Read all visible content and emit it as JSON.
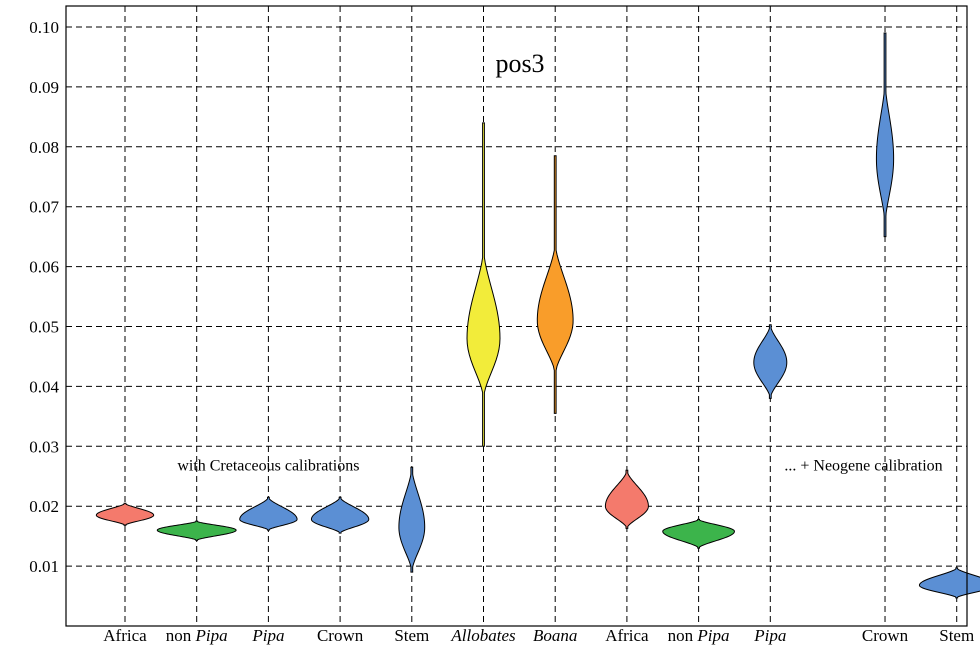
{
  "chart_data": {
    "type": "violin",
    "title": "pos3",
    "xlabel": "",
    "ylabel": "",
    "ylim": [
      0.0,
      0.103
    ],
    "yticks": [
      0.01,
      0.02,
      0.03,
      0.04,
      0.05,
      0.06,
      0.07,
      0.08,
      0.09,
      0.1
    ],
    "ytick_labels": [
      "0.01",
      "0.02",
      "0.03",
      "0.04",
      "0.05",
      "0.06",
      "0.07",
      "0.08",
      "0.09",
      "0.10"
    ],
    "grid": true,
    "annotations": [
      {
        "text": "with Cretaceous calibrations",
        "x": 3,
        "y": 0.0268
      },
      {
        "text": "... + Neogene calibration",
        "x": 11.3,
        "y": 0.0268
      }
    ],
    "categories": [
      {
        "parts": [
          {
            "text": "Africa",
            "italic": false
          }
        ]
      },
      {
        "parts": [
          {
            "text": "non ",
            "italic": false
          },
          {
            "text": "Pipa",
            "italic": true
          }
        ]
      },
      {
        "parts": [
          {
            "text": "Pipa",
            "italic": true
          }
        ]
      },
      {
        "parts": [
          {
            "text": "Crown",
            "italic": false
          }
        ]
      },
      {
        "parts": [
          {
            "text": "Stem",
            "italic": false
          }
        ]
      },
      {
        "parts": [
          {
            "text": "Allobates",
            "italic": true
          }
        ]
      },
      {
        "parts": [
          {
            "text": "Boana",
            "italic": true
          }
        ]
      },
      {
        "parts": [
          {
            "text": "Africa",
            "italic": false
          }
        ]
      },
      {
        "parts": [
          {
            "text": "non ",
            "italic": false
          },
          {
            "text": "Pipa",
            "italic": true
          }
        ]
      },
      {
        "parts": [
          {
            "text": "Pipa",
            "italic": true
          }
        ]
      },
      {
        "parts": [
          {
            "text": "Crown",
            "italic": false
          }
        ]
      },
      {
        "parts": [
          {
            "text": "Stem",
            "italic": false
          }
        ]
      }
    ],
    "violins": [
      {
        "x": 1,
        "min": 0.0168,
        "max": 0.0205,
        "mode": 0.0185,
        "halfwidth": 0.4,
        "color": "#f47a6c"
      },
      {
        "x": 2,
        "min": 0.0143,
        "max": 0.0175,
        "mode": 0.016,
        "halfwidth": 0.55,
        "color": "#3cb44b"
      },
      {
        "x": 3,
        "min": 0.016,
        "max": 0.0215,
        "mode": 0.0178,
        "halfwidth": 0.4,
        "color": "#5b8fd4"
      },
      {
        "x": 4,
        "min": 0.0155,
        "max": 0.0215,
        "mode": 0.0178,
        "halfwidth": 0.4,
        "color": "#5b8fd4"
      },
      {
        "x": 5,
        "min": 0.009,
        "max": 0.0265,
        "mode": 0.0165,
        "halfwidth": 0.18,
        "color": "#5b8fd4"
      },
      {
        "x": 6,
        "min": 0.03,
        "max": 0.084,
        "mode": 0.048,
        "halfwidth": 0.23,
        "color": "#f2ec3a",
        "body_min": 0.038,
        "body_max": 0.063
      },
      {
        "x": 7,
        "min": 0.0355,
        "max": 0.0785,
        "mode": 0.051,
        "halfwidth": 0.25,
        "color": "#f99d2a",
        "body_min": 0.042,
        "body_max": 0.064
      },
      {
        "x": 8,
        "min": 0.0163,
        "max": 0.026,
        "mode": 0.02,
        "halfwidth": 0.3,
        "color": "#f47a6c"
      },
      {
        "x": 9,
        "min": 0.013,
        "max": 0.0178,
        "mode": 0.0158,
        "halfwidth": 0.5,
        "color": "#3cb44b"
      },
      {
        "x": 10,
        "min": 0.038,
        "max": 0.0503,
        "mode": 0.044,
        "halfwidth": 0.23,
        "color": "#5b8fd4"
      },
      {
        "x": 11.6,
        "min": 0.065,
        "max": 0.099,
        "mode": 0.078,
        "halfwidth": 0.12,
        "color": "#5b8fd4",
        "body_min": 0.067,
        "body_max": 0.091
      },
      {
        "x": 12.6,
        "min": 0.0047,
        "max": 0.0097,
        "mode": 0.0068,
        "halfwidth": 0.52,
        "color": "#5b8fd4"
      }
    ],
    "xlabel_positions": [
      1,
      2,
      3,
      4,
      5,
      6,
      7,
      8,
      9,
      10,
      11.6,
      12.6
    ]
  }
}
